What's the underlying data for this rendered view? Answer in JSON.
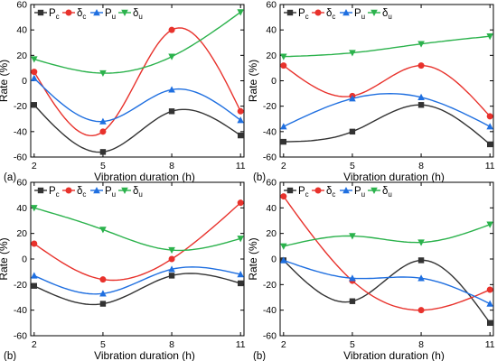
{
  "colors": {
    "Pc": "#333333",
    "delta_c": "#e8322c",
    "Pu": "#1f6fe0",
    "delta_u": "#2bb24c",
    "axis": "#000000"
  },
  "legend_labels": {
    "Pc": "P",
    "Pc_sub": "c",
    "delta_c": "δ",
    "delta_c_sub": "c",
    "Pu": "P",
    "Pu_sub": "u",
    "delta_u": "δ",
    "delta_u_sub": "u"
  },
  "chart_data": [
    {
      "type": "scatter",
      "panel_label": "(a)",
      "xlabel": "Vibration duration (h)",
      "ylabel": "Rate (%)",
      "x": [
        2,
        5,
        8,
        11
      ],
      "xticks": [
        "2",
        "5",
        "8",
        "11"
      ],
      "yticks": [
        "-60",
        "-40",
        "-20",
        "0",
        "20",
        "40",
        "60"
      ],
      "ylim": [
        -60,
        60
      ],
      "legend_position": "top-left",
      "grid": false,
      "fit_curves": true,
      "series": [
        {
          "key": "Pc",
          "name": "Pc",
          "marker": "square",
          "values": [
            -19,
            -56,
            -24,
            -43
          ]
        },
        {
          "key": "delta_c",
          "name": "δc",
          "marker": "circle",
          "values": [
            7,
            -40,
            40,
            -24
          ]
        },
        {
          "key": "Pu",
          "name": "Pu",
          "marker": "triangle-up",
          "values": [
            2,
            -32,
            -7,
            -31
          ]
        },
        {
          "key": "delta_u",
          "name": "δu",
          "marker": "triangle-down",
          "values": [
            17,
            6,
            19,
            54
          ]
        }
      ]
    },
    {
      "type": "scatter",
      "panel_label": "(b)",
      "xlabel": "Vibration duration (h)",
      "ylabel": "Rate (%)",
      "x": [
        2,
        5,
        8,
        11
      ],
      "xticks": [
        "2",
        "5",
        "8",
        "11"
      ],
      "yticks": [
        "-60",
        "-40",
        "-20",
        "0",
        "20",
        "40",
        "60"
      ],
      "ylim": [
        -60,
        60
      ],
      "legend_position": "top-left",
      "grid": false,
      "fit_curves": true,
      "series": [
        {
          "key": "Pc",
          "name": "Pc",
          "marker": "square",
          "values": [
            -48,
            -40,
            -19,
            -50
          ]
        },
        {
          "key": "delta_c",
          "name": "δc",
          "marker": "circle",
          "values": [
            12,
            -12,
            12,
            -28
          ]
        },
        {
          "key": "Pu",
          "name": "Pu",
          "marker": "triangle-up",
          "values": [
            -36,
            -14,
            -13,
            -36
          ]
        },
        {
          "key": "delta_u",
          "name": "δu",
          "marker": "triangle-down",
          "values": [
            19,
            22,
            29,
            35
          ]
        }
      ]
    },
    {
      "type": "scatter",
      "panel_label": "(b)",
      "xlabel": "Vibration duration (h)",
      "ylabel": "Rate (%)",
      "x": [
        2,
        5,
        8,
        11
      ],
      "xticks": [
        "2",
        "5",
        "8",
        "11"
      ],
      "yticks": [
        "-60",
        "-40",
        "-20",
        "0",
        "20",
        "40",
        "60"
      ],
      "ylim": [
        -60,
        60
      ],
      "legend_position": "top-left",
      "grid": false,
      "fit_curves": true,
      "series": [
        {
          "key": "Pc",
          "name": "Pc",
          "marker": "square",
          "values": [
            -21,
            -35,
            -13,
            -19
          ]
        },
        {
          "key": "delta_c",
          "name": "δc",
          "marker": "circle",
          "values": [
            12,
            -16,
            0,
            44
          ]
        },
        {
          "key": "Pu",
          "name": "Pu",
          "marker": "triangle-up",
          "values": [
            -13,
            -27,
            -8,
            -12
          ]
        },
        {
          "key": "delta_u",
          "name": "δu",
          "marker": "triangle-down",
          "values": [
            40,
            23,
            7,
            16
          ]
        }
      ]
    },
    {
      "type": "scatter",
      "panel_label": "(b)",
      "xlabel": "Vibration duration (h)",
      "ylabel": "Rate (%)",
      "x": [
        2,
        5,
        8,
        11
      ],
      "xticks": [
        "2",
        "5",
        "8",
        "11"
      ],
      "yticks": [
        "-60",
        "-40",
        "-20",
        "0",
        "20",
        "40",
        "60"
      ],
      "ylim": [
        -60,
        60
      ],
      "legend_position": "top-left",
      "grid": false,
      "fit_curves": true,
      "series": [
        {
          "key": "Pc",
          "name": "Pc",
          "marker": "square",
          "values": [
            -1,
            -33,
            -1,
            -50
          ]
        },
        {
          "key": "delta_c",
          "name": "δc",
          "marker": "circle",
          "values": [
            49,
            -17,
            -40,
            -24
          ]
        },
        {
          "key": "Pu",
          "name": "Pu",
          "marker": "triangle-up",
          "values": [
            -1,
            -15,
            -15,
            -35
          ]
        },
        {
          "key": "delta_u",
          "name": "δu",
          "marker": "triangle-down",
          "values": [
            10,
            18,
            13,
            27
          ]
        }
      ]
    }
  ]
}
